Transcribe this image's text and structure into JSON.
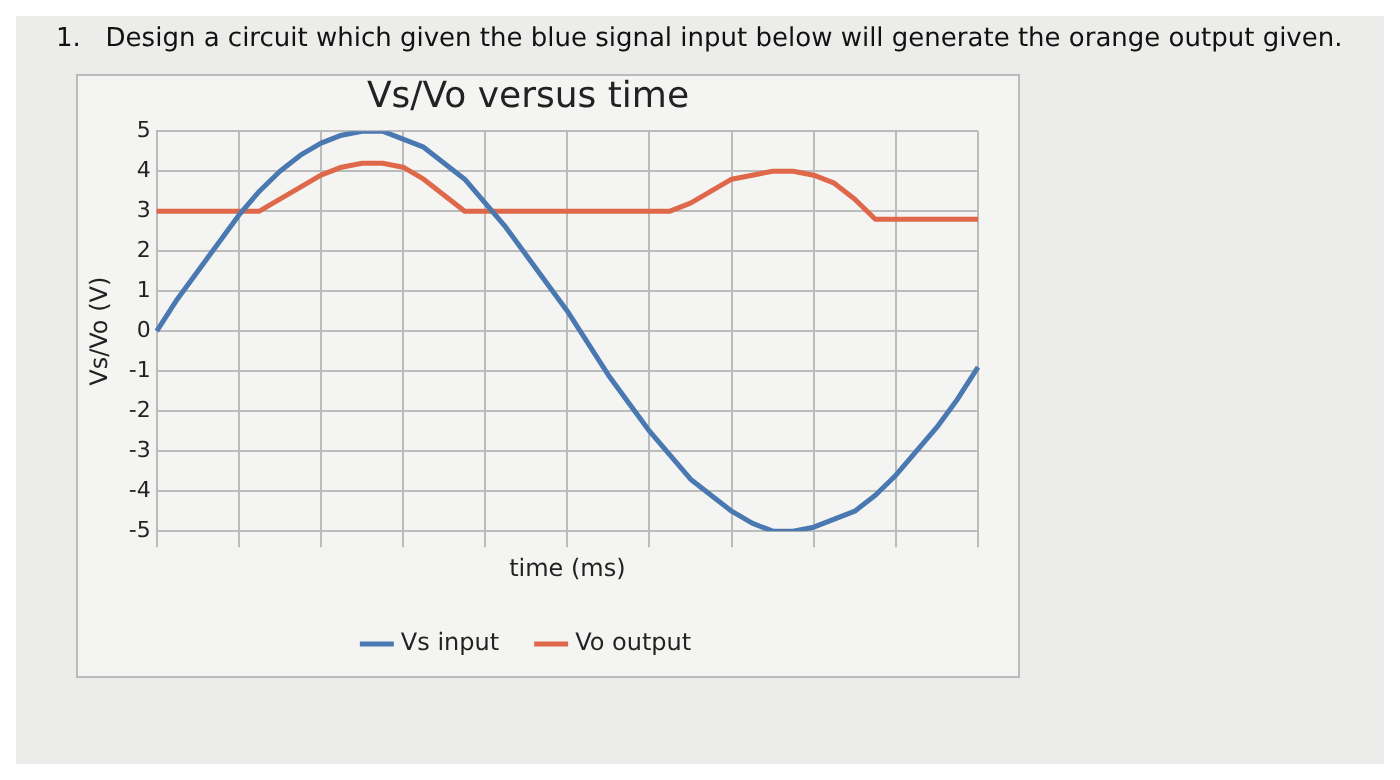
{
  "chart_data": {
    "type": "line",
    "title": "Vs/Vo versus time",
    "xlabel": "time (ms)",
    "ylabel": "Vs/Vo (V)",
    "annotations": [
      "1.   Design a circuit which given the blue signal input below will generate the orange output given."
    ],
    "categories": [
      null,
      null,
      null,
      null,
      null,
      null,
      null,
      null,
      null,
      null,
      null,
      null,
      null,
      null,
      null,
      null,
      null,
      null,
      null,
      null,
      null,
      null,
      null,
      null,
      null,
      null,
      null,
      null,
      null,
      null,
      null,
      null,
      null,
      null,
      null,
      null,
      null,
      null,
      null,
      null,
      null
    ],
    "series": [
      {
        "name": "Vs input",
        "color": "#4a78b0",
        "values": [
          0,
          0.8,
          1.5,
          2.2,
          2.9,
          3.5,
          4.0,
          4.4,
          4.7,
          4.9,
          5.0,
          5.0,
          4.8,
          4.6,
          4.2,
          3.8,
          3.2,
          2.6,
          1.9,
          1.2,
          0.5,
          -0.3,
          -1.1,
          -1.8,
          -2.5,
          -3.1,
          -3.7,
          -4.1,
          -4.5,
          -4.8,
          -5.0,
          -5.0,
          -4.9,
          -4.7,
          -4.5,
          -4.1,
          -3.6,
          -3.0,
          -2.4,
          -1.7,
          -0.9
        ]
      },
      {
        "name": "Vo output",
        "color": "#e0684a",
        "values": [
          3,
          3,
          3,
          3,
          3,
          3,
          3.3,
          3.6,
          3.9,
          4.1,
          4.2,
          4.2,
          4.1,
          3.8,
          3.4,
          3,
          3,
          3,
          3,
          3,
          3,
          3,
          3,
          3,
          3,
          3,
          3.2,
          3.5,
          3.8,
          3.9,
          4,
          4,
          3.9,
          3.7,
          3.3,
          2.8,
          2.8,
          2.8,
          2.8,
          2.8,
          2.8
        ]
      }
    ],
    "ylim": [
      -5,
      5
    ],
    "yticks": [
      -5,
      -4,
      -3,
      -2,
      -1,
      0,
      1,
      2,
      3,
      4,
      5
    ],
    "grid": true,
    "legend": "bottom",
    "marker": "none",
    "line_style": "solid"
  }
}
